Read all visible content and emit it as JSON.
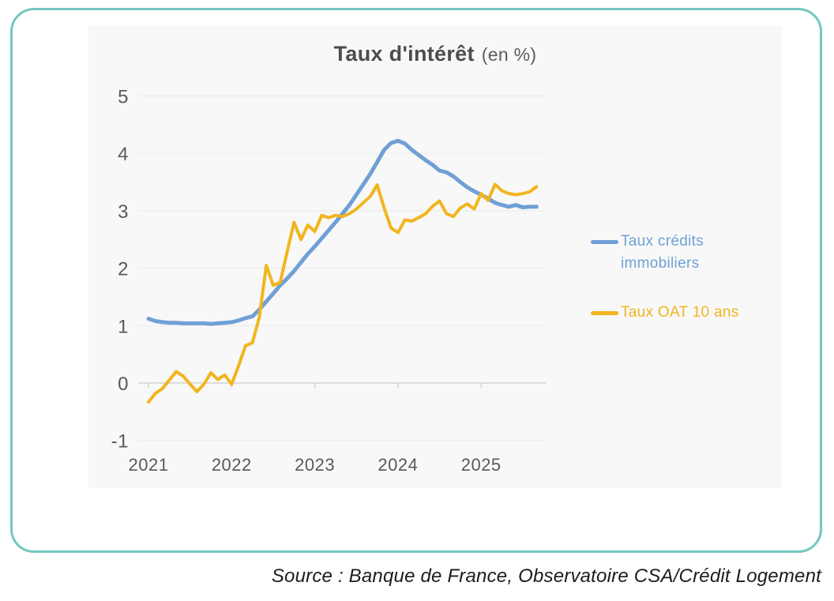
{
  "chart_data": {
    "type": "line",
    "title": "Taux d'intérêt",
    "title_suffix": "(en %)",
    "x_unit": "monthly",
    "x_start": "2021-01",
    "x_end": "2025-09",
    "x_tick_labels": [
      "2021",
      "2022",
      "2023",
      "2024",
      "2025"
    ],
    "y_ticks": [
      {
        "label": "5",
        "value": 5
      },
      {
        "label": "4",
        "value": 4
      },
      {
        "label": "3",
        "value": 3
      },
      {
        "label": "2",
        "value": 2
      },
      {
        "label": "1",
        "value": 1
      },
      {
        "label": "0",
        "value": 0
      },
      {
        "label": "-1",
        "value": -1
      }
    ],
    "ylim": [
      -1,
      5
    ],
    "grid": true,
    "legend_position": "right",
    "series": [
      {
        "name": "Taux crédits immobiliers",
        "color": "#6fa0d6",
        "values": [
          1.12,
          1.08,
          1.06,
          1.05,
          1.05,
          1.04,
          1.04,
          1.04,
          1.04,
          1.03,
          1.04,
          1.05,
          1.06,
          1.09,
          1.13,
          1.16,
          1.28,
          1.42,
          1.56,
          1.7,
          1.82,
          1.95,
          2.1,
          2.25,
          2.38,
          2.52,
          2.66,
          2.8,
          2.95,
          3.1,
          3.28,
          3.46,
          3.64,
          3.85,
          4.06,
          4.18,
          4.22,
          4.17,
          4.06,
          3.97,
          3.88,
          3.8,
          3.7,
          3.67,
          3.6,
          3.5,
          3.41,
          3.34,
          3.28,
          3.21,
          3.14,
          3.1,
          3.07,
          3.1,
          3.06,
          3.07,
          3.07
        ]
      },
      {
        "name": "Taux OAT 10 ans",
        "color": "#f1b51f",
        "values": [
          -0.33,
          -0.18,
          -0.1,
          0.05,
          0.2,
          0.12,
          -0.02,
          -0.15,
          -0.02,
          0.18,
          0.06,
          0.14,
          -0.02,
          0.3,
          0.65,
          0.7,
          1.15,
          2.05,
          1.7,
          1.75,
          2.28,
          2.8,
          2.5,
          2.75,
          2.64,
          2.92,
          2.88,
          2.92,
          2.9,
          2.95,
          3.03,
          3.14,
          3.25,
          3.45,
          3.05,
          2.7,
          2.62,
          2.84,
          2.82,
          2.88,
          2.95,
          3.08,
          3.17,
          2.95,
          2.9,
          3.05,
          3.12,
          3.03,
          3.3,
          3.18,
          3.46,
          3.35,
          3.3,
          3.28,
          3.3,
          3.33,
          3.42
        ]
      }
    ]
  },
  "card": {
    "border_color": "#74c6bf"
  },
  "source": {
    "text": "Source : Banque de France, Observatoire CSA/Crédit Logement"
  }
}
